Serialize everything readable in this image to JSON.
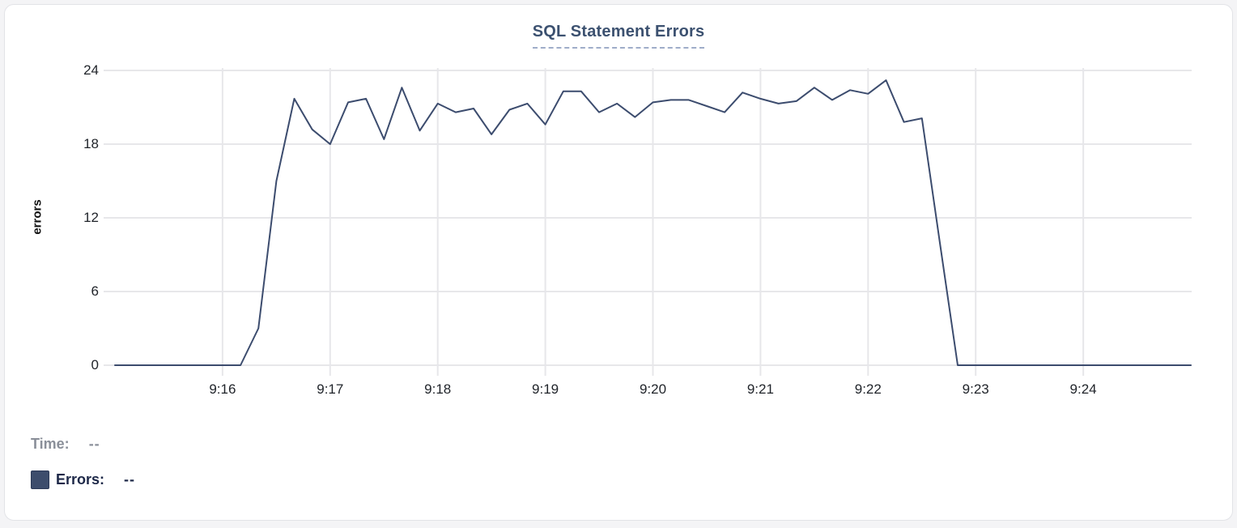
{
  "chart": {
    "title": "SQL Statement Errors",
    "y_axis_label": "errors",
    "legend": {
      "time_label": "Time:",
      "time_value": "--",
      "errors_label": "Errors:",
      "errors_value": "--"
    },
    "colors": {
      "line": "#3c4c6e",
      "swatch": "#3d4d6c",
      "grid": "#e7e7ea",
      "title": "#3c5170",
      "title_underline": "#9fadc9",
      "tick_text": "#1f2329",
      "legend_time_text": "#8a8f99",
      "legend_errors_text": "#1d2848"
    },
    "chart_data": {
      "type": "line",
      "title": "SQL Statement Errors",
      "xlabel": "",
      "ylabel": "errors",
      "ylim": [
        0,
        24
      ],
      "yticks": [
        0,
        6,
        12,
        18,
        24
      ],
      "xticks": [
        "9:16",
        "9:17",
        "9:18",
        "9:19",
        "9:20",
        "9:21",
        "9:22",
        "9:23",
        "9:24"
      ],
      "x_range": [
        "9:15:00",
        "9:25:00"
      ],
      "grid": true,
      "legend_position": "bottom-left",
      "series": [
        {
          "name": "Errors",
          "color": "#3c4c6e",
          "points": [
            [
              "9:15:00",
              0
            ],
            [
              "9:15:10",
              0
            ],
            [
              "9:15:20",
              0
            ],
            [
              "9:15:30",
              0
            ],
            [
              "9:15:40",
              0
            ],
            [
              "9:15:50",
              0
            ],
            [
              "9:16:00",
              0
            ],
            [
              "9:16:10",
              0
            ],
            [
              "9:16:20",
              3
            ],
            [
              "9:16:30",
              15
            ],
            [
              "9:16:40",
              21.7
            ],
            [
              "9:16:50",
              19.2
            ],
            [
              "9:17:00",
              18
            ],
            [
              "9:17:10",
              21.4
            ],
            [
              "9:17:20",
              21.7
            ],
            [
              "9:17:30",
              18.4
            ],
            [
              "9:17:40",
              22.6
            ],
            [
              "9:17:50",
              19.1
            ],
            [
              "9:18:00",
              21.3
            ],
            [
              "9:18:10",
              20.6
            ],
            [
              "9:18:20",
              20.9
            ],
            [
              "9:18:30",
              18.8
            ],
            [
              "9:18:40",
              20.8
            ],
            [
              "9:18:50",
              21.3
            ],
            [
              "9:19:00",
              19.6
            ],
            [
              "9:19:10",
              22.3
            ],
            [
              "9:19:20",
              22.3
            ],
            [
              "9:19:30",
              20.6
            ],
            [
              "9:19:40",
              21.3
            ],
            [
              "9:19:50",
              20.2
            ],
            [
              "9:20:00",
              21.4
            ],
            [
              "9:20:10",
              21.6
            ],
            [
              "9:20:20",
              21.6
            ],
            [
              "9:20:30",
              21.1
            ],
            [
              "9:20:40",
              20.6
            ],
            [
              "9:20:50",
              22.2
            ],
            [
              "9:21:00",
              21.7
            ],
            [
              "9:21:10",
              21.3
            ],
            [
              "9:21:20",
              21.5
            ],
            [
              "9:21:30",
              22.6
            ],
            [
              "9:21:40",
              21.6
            ],
            [
              "9:21:50",
              22.4
            ],
            [
              "9:22:00",
              22.1
            ],
            [
              "9:22:10",
              23.2
            ],
            [
              "9:22:20",
              19.8
            ],
            [
              "9:22:30",
              20.1
            ],
            [
              "9:22:40",
              10
            ],
            [
              "9:22:50",
              0
            ],
            [
              "9:23:00",
              0
            ],
            [
              "9:23:10",
              0
            ],
            [
              "9:23:20",
              0
            ],
            [
              "9:23:30",
              0
            ],
            [
              "9:23:40",
              0
            ],
            [
              "9:23:50",
              0
            ],
            [
              "9:24:00",
              0
            ],
            [
              "9:24:10",
              0
            ],
            [
              "9:24:20",
              0
            ],
            [
              "9:24:30",
              0
            ],
            [
              "9:24:40",
              0
            ],
            [
              "9:24:50",
              0
            ],
            [
              "9:25:00",
              0
            ]
          ]
        }
      ]
    }
  }
}
